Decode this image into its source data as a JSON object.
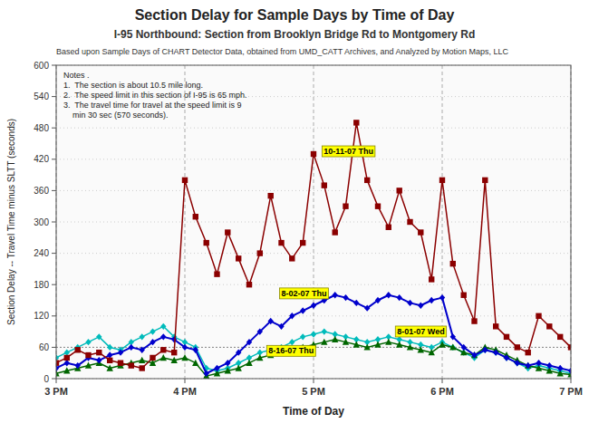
{
  "chart_data": {
    "type": "line",
    "title": "Section Delay for Sample Days by Time of Day",
    "subtitle": [
      "I-95 Northbound: Section from Brooklyn Bridge Rd to Montgomery Rd",
      "Based upon Sample Days of CHART Detector Data, obtained from UMD_CATT Archives, and Analyzed by Motion Maps, LLC"
    ],
    "x_label": "Time of Day",
    "y_label": "Section Delay -- Travel Time minus SLTT (seconds)",
    "notes": [
      "Notes .",
      "1.  The section is about 10.5 mile long.",
      "2.  The speed limit in this section of I-95 is 65 mph.",
      "3.  The travel time for travel at the speed limit is 9",
      "    min 30 sec (570 seconds)."
    ],
    "annotations": [
      {
        "text": "10-11-07 Thu",
        "x": 17.08,
        "y": 430
      },
      {
        "text": "8-02-07 Thu",
        "x": 16.75,
        "y": 158
      },
      {
        "text": "8-01-07 Wed",
        "x": 17.65,
        "y": 85
      },
      {
        "text": "8-16-07 Thu",
        "x": 16.65,
        "y": 48
      }
    ],
    "xlim": [
      15,
      19
    ],
    "ylim": [
      0,
      600
    ],
    "xticks": [
      {
        "value": 15,
        "label": "3 PM"
      },
      {
        "value": 16,
        "label": "4 PM"
      },
      {
        "value": 17,
        "label": "5 PM"
      },
      {
        "value": 18,
        "label": "6 PM"
      },
      {
        "value": 19,
        "label": "7 PM"
      }
    ],
    "yticks": [
      0,
      60,
      120,
      180,
      240,
      300,
      360,
      420,
      480,
      540,
      600
    ],
    "grid": true,
    "reference_line": 60,
    "x": [
      15.0,
      15.083,
      15.167,
      15.25,
      15.333,
      15.417,
      15.5,
      15.583,
      15.667,
      15.75,
      15.833,
      15.917,
      16.0,
      16.083,
      16.167,
      16.25,
      16.333,
      16.417,
      16.5,
      16.583,
      16.667,
      16.75,
      16.833,
      16.917,
      17.0,
      17.083,
      17.167,
      17.25,
      17.333,
      17.417,
      17.5,
      17.583,
      17.667,
      17.75,
      17.833,
      17.917,
      18.0,
      18.083,
      18.167,
      18.25,
      18.333,
      18.417,
      18.5,
      18.583,
      18.667,
      18.75,
      18.833,
      18.917,
      19.0
    ],
    "series": [
      {
        "color": "#8b0000",
        "marker": "square",
        "values": [
          30,
          40,
          55,
          45,
          50,
          35,
          30,
          25,
          20,
          40,
          55,
          50,
          380,
          310,
          260,
          200,
          280,
          230,
          180,
          240,
          350,
          260,
          230,
          260,
          430,
          370,
          280,
          330,
          490,
          380,
          330,
          290,
          360,
          300,
          280,
          190,
          380,
          220,
          160,
          110,
          380,
          100,
          80,
          60,
          50,
          120,
          100,
          80,
          60
        ]
      },
      {
        "color": "#0000cc",
        "marker": "diamond",
        "values": [
          20,
          30,
          25,
          40,
          35,
          45,
          50,
          60,
          55,
          70,
          80,
          75,
          60,
          55,
          10,
          20,
          30,
          50,
          70,
          90,
          110,
          100,
          120,
          130,
          140,
          150,
          160,
          155,
          145,
          135,
          150,
          160,
          155,
          145,
          140,
          150,
          155,
          80,
          60,
          45,
          55,
          50,
          40,
          30,
          25,
          30,
          25,
          20,
          15
        ]
      },
      {
        "color": "#006600",
        "marker": "triangle",
        "values": [
          10,
          15,
          20,
          25,
          30,
          20,
          25,
          30,
          35,
          30,
          40,
          35,
          40,
          30,
          5,
          10,
          15,
          20,
          30,
          40,
          45,
          50,
          55,
          60,
          65,
          70,
          75,
          70,
          65,
          60,
          65,
          70,
          65,
          60,
          55,
          50,
          65,
          60,
          50,
          45,
          60,
          55,
          45,
          35,
          25,
          20,
          15,
          10,
          8
        ]
      },
      {
        "color": "#00bbbb",
        "marker": "diamond",
        "values": [
          40,
          50,
          60,
          70,
          80,
          60,
          55,
          70,
          80,
          90,
          100,
          80,
          70,
          60,
          20,
          15,
          20,
          30,
          40,
          50,
          55,
          60,
          70,
          80,
          85,
          90,
          85,
          80,
          75,
          70,
          75,
          80,
          75,
          70,
          65,
          60,
          70,
          60,
          50,
          40,
          55,
          50,
          40,
          30,
          20,
          25,
          20,
          15,
          10
        ]
      }
    ]
  }
}
